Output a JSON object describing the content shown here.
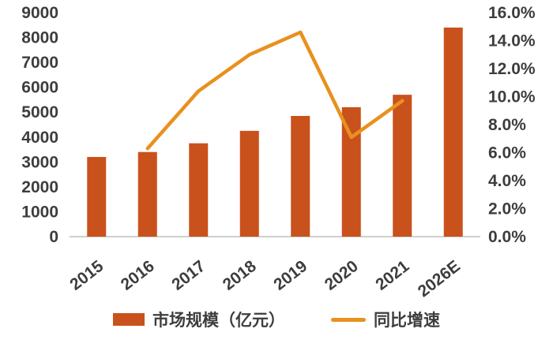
{
  "chart_data": {
    "type": "bar",
    "subtype": "combo-bar-line",
    "title": "",
    "categories": [
      "2015",
      "2016",
      "2017",
      "2018",
      "2019",
      "2020",
      "2021",
      "2026E"
    ],
    "series": [
      {
        "name": "市场规模（亿元）",
        "type": "bar",
        "axis": "left",
        "color": "#C9511C",
        "values": [
          3200,
          3400,
          3750,
          4250,
          4850,
          5200,
          5700,
          8400
        ]
      },
      {
        "name": "同比增速",
        "type": "line",
        "axis": "right",
        "color": "#E8911E",
        "values": [
          null,
          6.3,
          10.4,
          13.0,
          14.6,
          7.1,
          9.7,
          null
        ]
      }
    ],
    "left_axis": {
      "min": 0,
      "max": 9000,
      "step": 1000,
      "tick_labels": [
        "0",
        "1000",
        "2000",
        "3000",
        "4000",
        "5000",
        "6000",
        "7000",
        "8000",
        "9000"
      ]
    },
    "right_axis": {
      "min": 0,
      "max": 16,
      "step": 2,
      "format": "percent",
      "tick_labels": [
        "0.0%",
        "2.0%",
        "4.0%",
        "6.0%",
        "8.0%",
        "10.0%",
        "12.0%",
        "14.0%",
        "16.0%"
      ]
    },
    "grid": false,
    "legend_position": "bottom",
    "style": {
      "text_color": "#3D3D3D",
      "baseline_color": "#BFBFBF",
      "background": "#FFFFFF"
    }
  }
}
